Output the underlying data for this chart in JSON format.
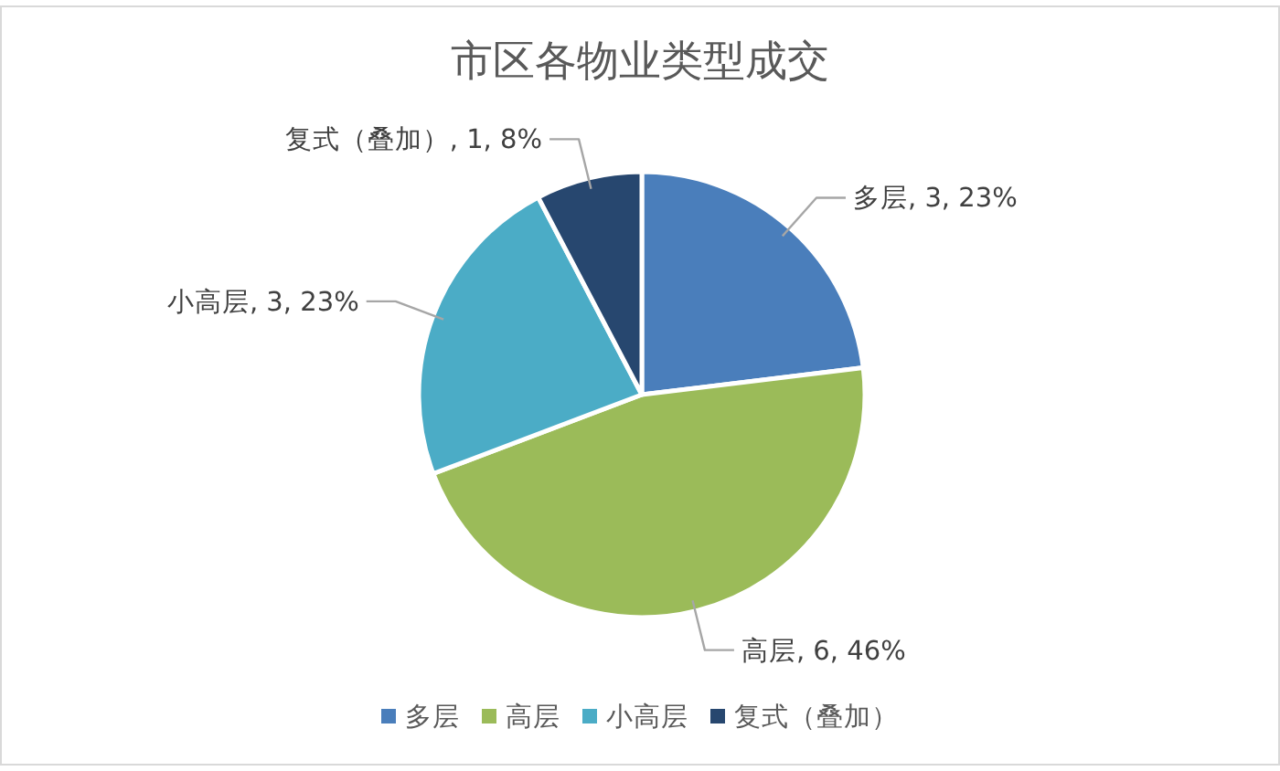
{
  "chart_data": {
    "type": "pie",
    "title": "市区各物业类型成交",
    "categories": [
      "多层",
      "高层",
      "小高层",
      "复式（叠加）"
    ],
    "values": [
      3,
      6,
      3,
      1
    ],
    "colors": [
      "#4a7ebb",
      "#9bbb59",
      "#4bacc6",
      "#27476f"
    ],
    "value_labels": [
      "多层, 3, 23%",
      "高层, 6, 46%",
      "小高层, 3, 23%",
      "复式（叠加）, 1, 8%"
    ],
    "legend": "bottom"
  }
}
